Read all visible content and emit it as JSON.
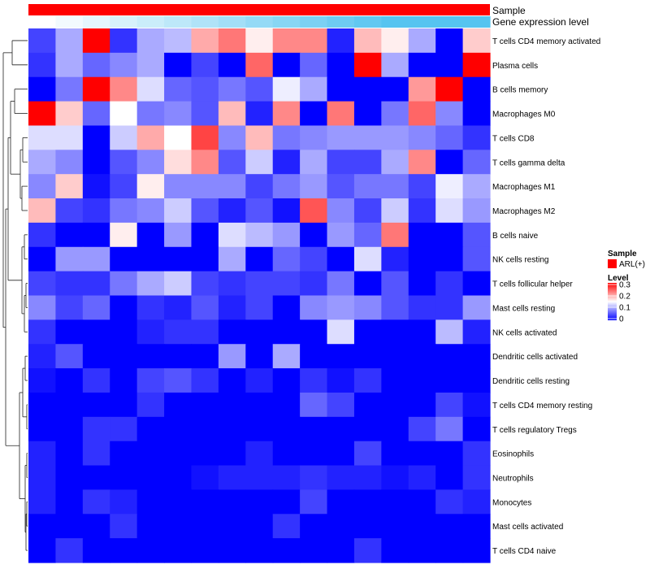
{
  "chart_data": {
    "type": "heatmap",
    "annotation_tracks": [
      {
        "name": "Sample",
        "color": "#ff0000"
      },
      {
        "name": "Gene expression level",
        "gradient": [
          "#ffffff",
          "#56c4f0"
        ]
      }
    ],
    "legend": {
      "sample_title": "Sample",
      "sample_entry": "ARL(+)",
      "sample_color": "#ff0000",
      "level_title": "Level",
      "ticks": [
        0.3,
        0.2,
        0.1,
        0
      ],
      "tick_labels": [
        "0.3",
        "0.2",
        "0.1",
        "0"
      ],
      "min": 0,
      "max": 0.3,
      "color_low": "#0000ff",
      "color_mid": "#ffffff",
      "color_high": "#ff0000"
    },
    "rows": [
      "T cells CD4 memory activated",
      "Plasma cells",
      "B cells memory",
      "Macrophages M0",
      "T cells CD8",
      "T cells gamma delta",
      "Macrophages M1",
      "Macrophages M2",
      "B cells naive",
      "NK cells resting",
      "T cells follicular helper",
      "Mast cells resting",
      "NK cells activated",
      "Dendritic cells activated",
      "Dendritic cells resting",
      "T cells CD4 memory resting",
      "T cells regulatory  Tregs",
      "Eosinophils",
      "Neutrophils",
      "Monocytes",
      "Mast cells activated",
      "T cells CD4 naive"
    ],
    "values": [
      [
        0.04,
        0.1,
        0.3,
        0.03,
        0.1,
        0.11,
        0.2,
        0.23,
        0.16,
        0.22,
        0.22,
        0.02,
        0.19,
        0.16,
        0.1,
        0.0,
        0.18
      ],
      [
        0.03,
        0.1,
        0.06,
        0.08,
        0.1,
        0.0,
        0.04,
        0.0,
        0.24,
        0.0,
        0.06,
        0.0,
        0.3,
        0.1,
        0.0,
        0.0,
        0.3
      ],
      [
        0.0,
        0.07,
        0.3,
        0.22,
        0.13,
        0.06,
        0.05,
        0.07,
        0.05,
        0.14,
        0.1,
        0.0,
        0.0,
        0.0,
        0.21,
        0.3,
        0.0
      ],
      [
        0.3,
        0.18,
        0.06,
        0.15,
        0.07,
        0.08,
        0.05,
        0.19,
        0.02,
        0.22,
        0.0,
        0.23,
        0.0,
        0.07,
        0.24,
        0.08,
        0.0
      ],
      [
        0.13,
        0.13,
        0.0,
        0.12,
        0.2,
        0.15,
        0.26,
        0.08,
        0.19,
        0.07,
        0.08,
        0.09,
        0.09,
        0.09,
        0.08,
        0.06,
        0.03
      ],
      [
        0.1,
        0.08,
        0.0,
        0.05,
        0.08,
        0.17,
        0.22,
        0.05,
        0.12,
        0.02,
        0.1,
        0.04,
        0.04,
        0.1,
        0.22,
        0.0,
        0.06
      ],
      [
        0.08,
        0.18,
        0.01,
        0.04,
        0.16,
        0.08,
        0.08,
        0.08,
        0.04,
        0.07,
        0.09,
        0.05,
        0.07,
        0.07,
        0.04,
        0.14,
        0.1
      ],
      [
        0.19,
        0.04,
        0.03,
        0.07,
        0.08,
        0.12,
        0.05,
        0.02,
        0.05,
        0.01,
        0.25,
        0.08,
        0.04,
        0.12,
        0.03,
        0.13,
        0.09
      ],
      [
        0.03,
        0.0,
        0.0,
        0.16,
        0.0,
        0.09,
        0.0,
        0.13,
        0.11,
        0.09,
        0.0,
        0.09,
        0.06,
        0.23,
        0.0,
        0.0,
        0.05
      ],
      [
        0.0,
        0.09,
        0.09,
        0.0,
        0.0,
        0.0,
        0.0,
        0.1,
        0.0,
        0.06,
        0.04,
        0.0,
        0.13,
        0.02,
        0.0,
        0.0,
        0.05
      ],
      [
        0.04,
        0.03,
        0.03,
        0.07,
        0.1,
        0.12,
        0.04,
        0.03,
        0.04,
        0.04,
        0.03,
        0.07,
        0.0,
        0.05,
        0.0,
        0.03,
        0.0
      ],
      [
        0.08,
        0.04,
        0.06,
        0.0,
        0.03,
        0.02,
        0.05,
        0.02,
        0.04,
        0.0,
        0.08,
        0.09,
        0.08,
        0.05,
        0.03,
        0.03,
        0.09
      ],
      [
        0.03,
        0.0,
        0.0,
        0.0,
        0.02,
        0.03,
        0.03,
        0.0,
        0.0,
        0.0,
        0.0,
        0.13,
        0.0,
        0.0,
        0.0,
        0.11,
        0.02
      ],
      [
        0.02,
        0.05,
        0.0,
        0.0,
        0.0,
        0.0,
        0.0,
        0.09,
        0.0,
        0.1,
        0.0,
        0.0,
        0.0,
        0.0,
        0.0,
        0.0,
        0.0
      ],
      [
        0.01,
        0.0,
        0.03,
        0.0,
        0.04,
        0.05,
        0.03,
        0.0,
        0.02,
        0.0,
        0.03,
        0.01,
        0.03,
        0.0,
        0.0,
        0.0,
        0.0
      ],
      [
        0.0,
        0.0,
        0.0,
        0.0,
        0.03,
        0.0,
        0.0,
        0.0,
        0.0,
        0.0,
        0.06,
        0.04,
        0.0,
        0.0,
        0.0,
        0.04,
        0.01
      ],
      [
        0.0,
        0.0,
        0.03,
        0.03,
        0.0,
        0.0,
        0.0,
        0.0,
        0.0,
        0.0,
        0.0,
        0.0,
        0.0,
        0.0,
        0.04,
        0.07,
        0.0
      ],
      [
        0.02,
        0.0,
        0.03,
        0.0,
        0.0,
        0.0,
        0.0,
        0.0,
        0.02,
        0.0,
        0.0,
        0.0,
        0.04,
        0.0,
        0.0,
        0.0,
        0.03
      ],
      [
        0.02,
        0.0,
        0.0,
        0.0,
        0.0,
        0.0,
        0.01,
        0.02,
        0.02,
        0.02,
        0.03,
        0.02,
        0.02,
        0.01,
        0.02,
        0.0,
        0.03
      ],
      [
        0.02,
        0.0,
        0.03,
        0.02,
        0.0,
        0.0,
        0.0,
        0.0,
        0.0,
        0.0,
        0.04,
        0.0,
        0.0,
        0.0,
        0.0,
        0.03,
        0.02
      ],
      [
        0.0,
        0.0,
        0.0,
        0.03,
        0.0,
        0.0,
        0.0,
        0.0,
        0.0,
        0.03,
        0.0,
        0.0,
        0.0,
        0.0,
        0.0,
        0.0,
        0.0
      ],
      [
        0.0,
        0.03,
        0.0,
        0.0,
        0.0,
        0.0,
        0.0,
        0.0,
        0.0,
        0.0,
        0.0,
        0.0,
        0.03,
        0.0,
        0.0,
        0.0,
        0.0
      ]
    ]
  }
}
